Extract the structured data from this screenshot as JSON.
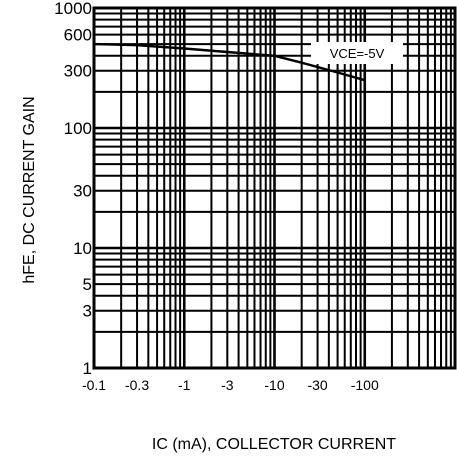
{
  "chart_data": {
    "type": "line",
    "title": "",
    "xlabel": "IC (mA), COLLECTOR CURRENT",
    "ylabel": "hFE, DC CURRENT GAIN",
    "x_scale": "log",
    "y_scale": "log",
    "xlim": [
      -0.1,
      -1000
    ],
    "ylim": [
      1,
      1000
    ],
    "grid": true,
    "x_ticks": [
      {
        "value": -0.1,
        "label": "-0.1"
      },
      {
        "value": -0.3,
        "label": "-0.3"
      },
      {
        "value": -1,
        "label": "-1"
      },
      {
        "value": -3,
        "label": "-3"
      },
      {
        "value": -10,
        "label": "-10"
      },
      {
        "value": -30,
        "label": "-30"
      },
      {
        "value": -100,
        "label": "-100"
      }
    ],
    "y_ticks": [
      {
        "value": 1000,
        "label": "1000"
      },
      {
        "value": 600,
        "label": "600"
      },
      {
        "value": 300,
        "label": "300"
      },
      {
        "value": 100,
        "label": "100"
      },
      {
        "value": 30,
        "label": "30"
      },
      {
        "value": 10,
        "label": "10"
      },
      {
        "value": 5,
        "label": "5"
      },
      {
        "value": 3,
        "label": "3"
      },
      {
        "value": 1,
        "label": "1"
      }
    ],
    "annotation": "VCE=-5V",
    "series": [
      {
        "x": [
          -0.1,
          -0.3,
          -1,
          -3,
          -10,
          -20,
          -50,
          -100
        ],
        "y": [
          500,
          490,
          460,
          430,
          400,
          350,
          290,
          250
        ]
      }
    ]
  }
}
